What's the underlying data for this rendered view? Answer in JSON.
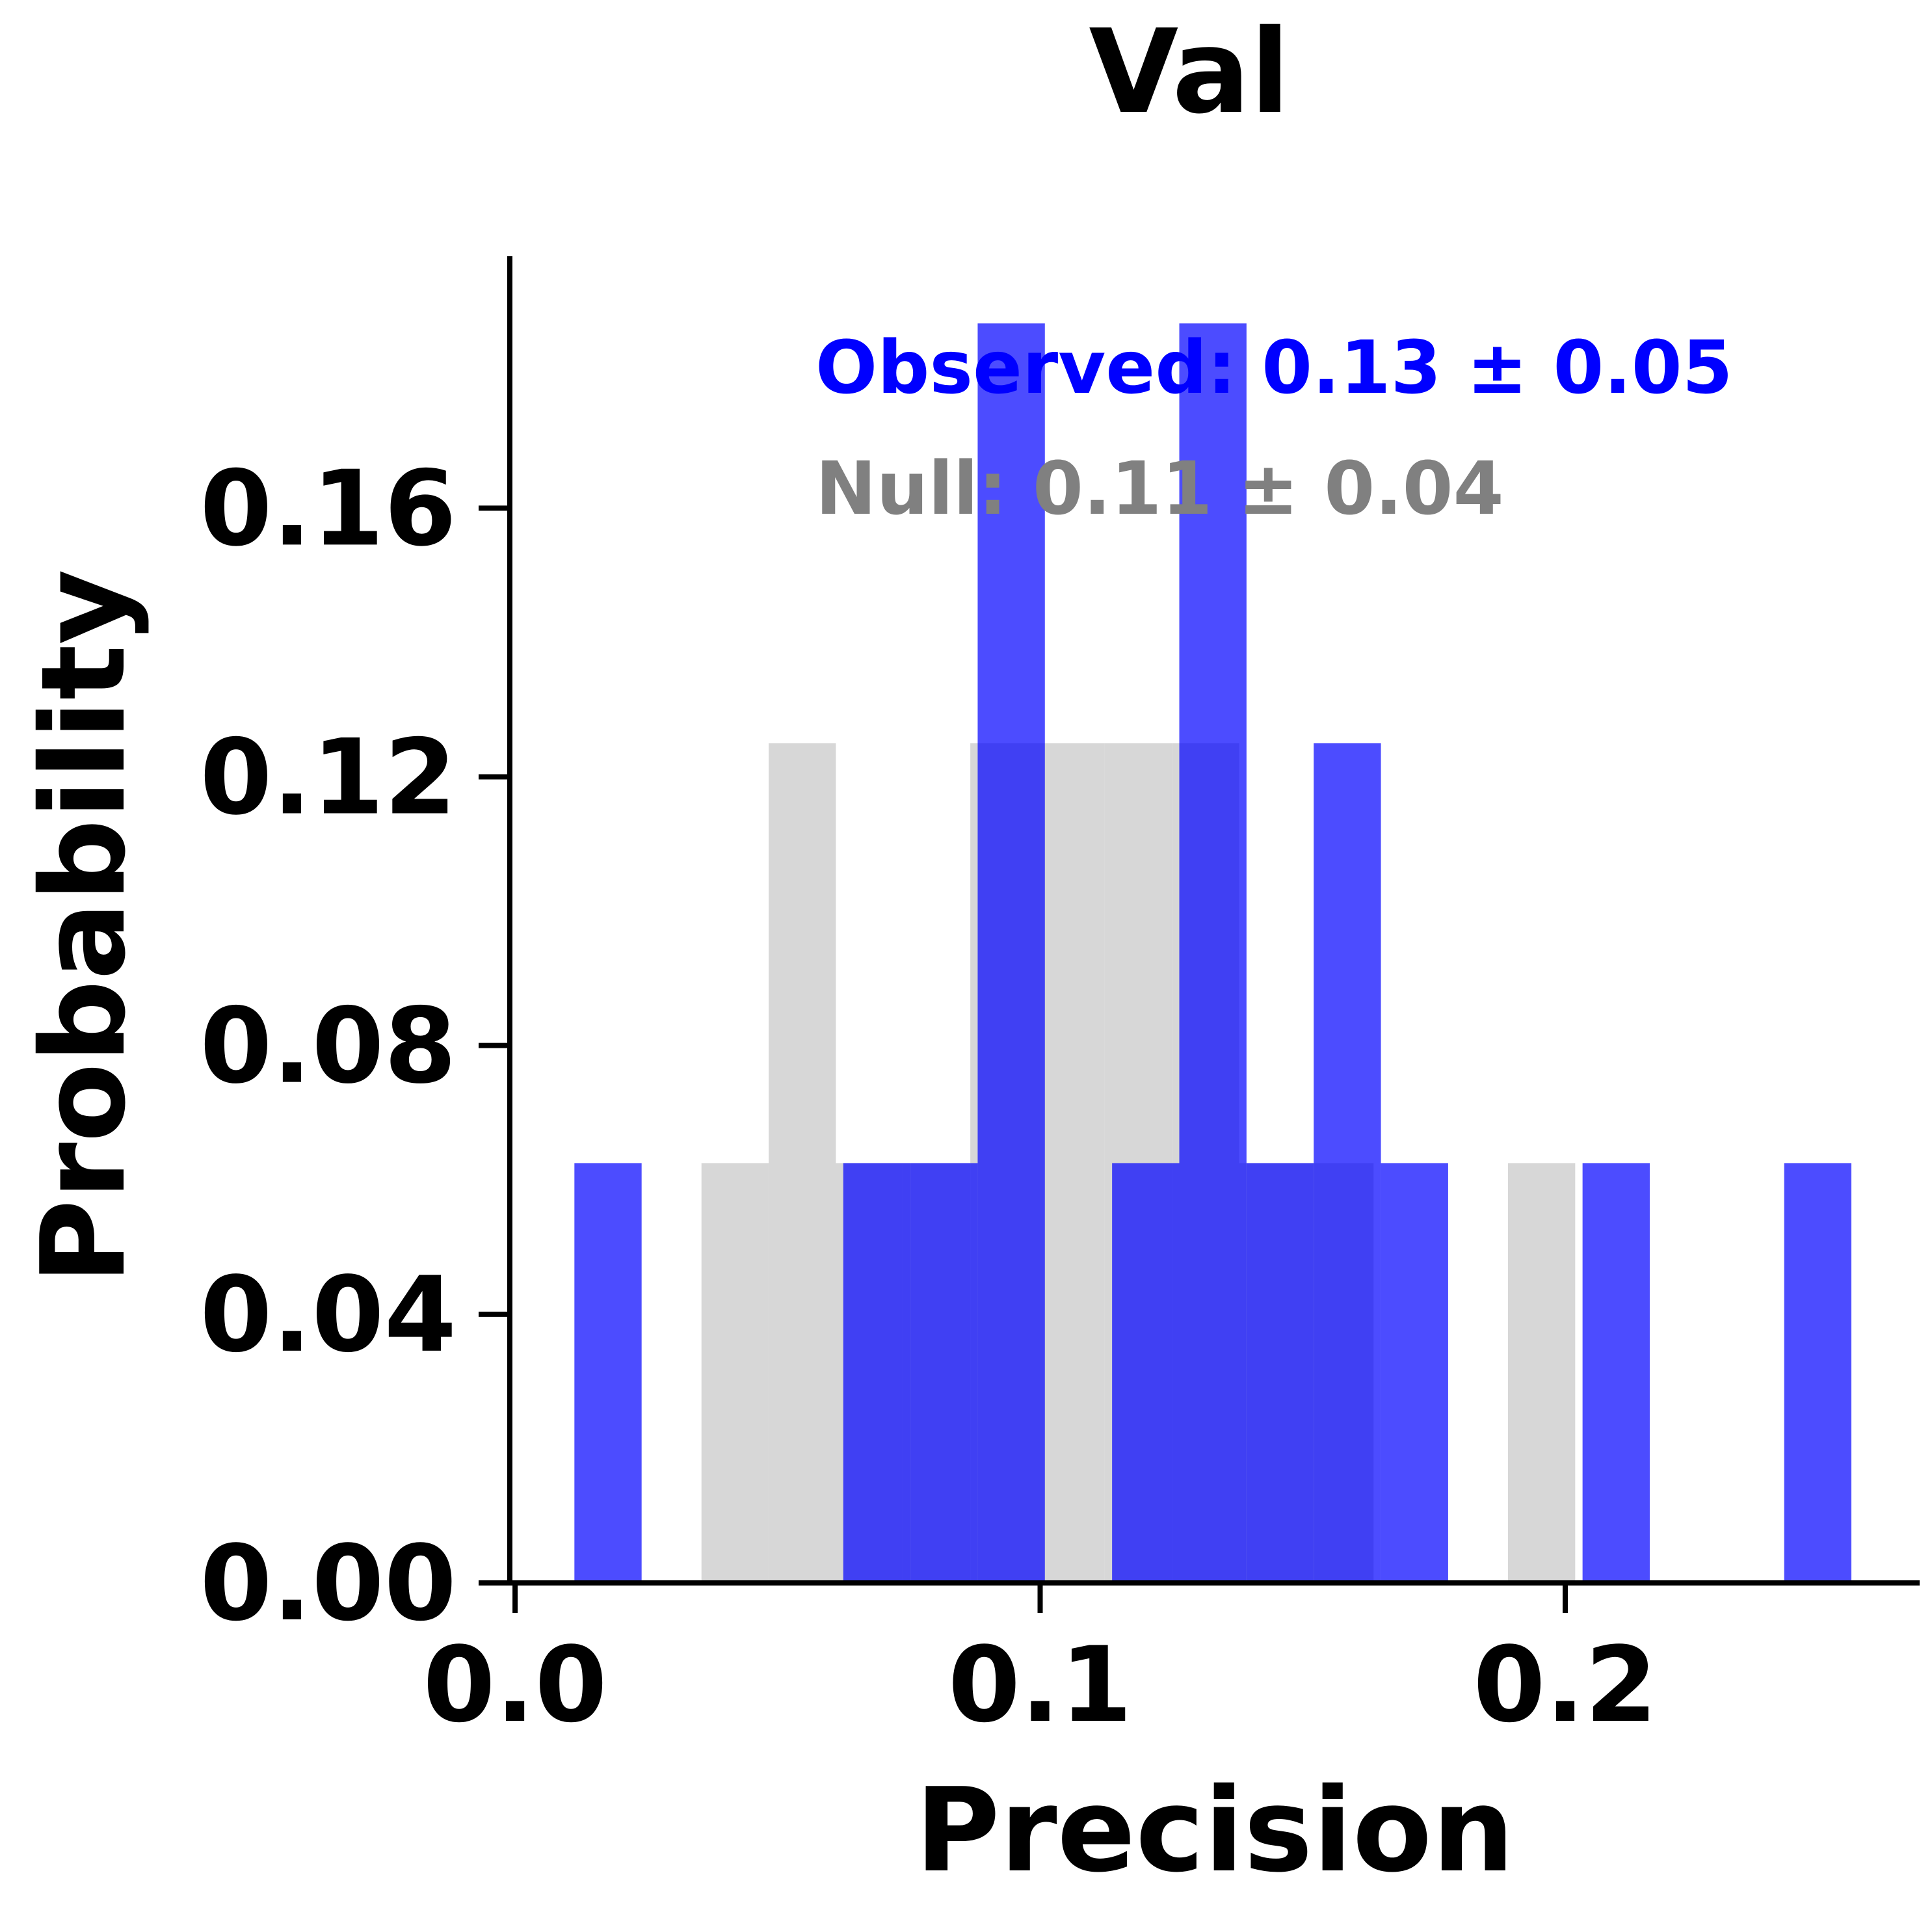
{
  "chart_data": {
    "type": "bar",
    "title": "Val",
    "xlabel": "Precision",
    "ylabel": "Probability",
    "xlim": [
      -0.001,
      0.2675
    ],
    "ylim": [
      0,
      0.1975
    ],
    "x_ticks": [
      0.0,
      0.1,
      0.2
    ],
    "x_tick_labels": [
      "0.0",
      "0.1",
      "0.2"
    ],
    "y_ticks": [
      0.0,
      0.04,
      0.08,
      0.12,
      0.16
    ],
    "y_tick_labels": [
      "0.00",
      "0.04",
      "0.08",
      "0.12",
      "0.16"
    ],
    "grid": false,
    "series": [
      {
        "name": "Null",
        "color": "#d3d3d3",
        "opacity": 0.9,
        "bins": [
          {
            "x0": 0.0355,
            "x1": 0.0483,
            "value": 0.0625
          },
          {
            "x0": 0.0483,
            "x1": 0.0611,
            "value": 0.125
          },
          {
            "x0": 0.0611,
            "x1": 0.0739,
            "value": 0.0625
          },
          {
            "x0": 0.0739,
            "x1": 0.0867,
            "value": 0.0625
          },
          {
            "x0": 0.0867,
            "x1": 0.0995,
            "value": 0.125
          },
          {
            "x0": 0.0995,
            "x1": 0.1123,
            "value": 0.125
          },
          {
            "x0": 0.1123,
            "x1": 0.1251,
            "value": 0.125
          },
          {
            "x0": 0.1251,
            "x1": 0.1379,
            "value": 0.125
          },
          {
            "x0": 0.1379,
            "x1": 0.1507,
            "value": 0.0625
          },
          {
            "x0": 0.1507,
            "x1": 0.1635,
            "value": 0.0625
          },
          {
            "x0": 0.1891,
            "x1": 0.2019,
            "value": 0.0625
          }
        ]
      },
      {
        "name": "Observed",
        "color": "#0000ff",
        "opacity": 0.7,
        "bins": [
          {
            "x0": 0.0113,
            "x1": 0.0241,
            "value": 0.0625
          },
          {
            "x0": 0.0625,
            "x1": 0.0753,
            "value": 0.0625
          },
          {
            "x0": 0.0753,
            "x1": 0.0881,
            "value": 0.0625
          },
          {
            "x0": 0.0881,
            "x1": 0.1009,
            "value": 0.1875
          },
          {
            "x0": 0.1137,
            "x1": 0.1265,
            "value": 0.0625
          },
          {
            "x0": 0.1265,
            "x1": 0.1393,
            "value": 0.1875
          },
          {
            "x0": 0.1393,
            "x1": 0.1521,
            "value": 0.0625
          },
          {
            "x0": 0.1521,
            "x1": 0.1649,
            "value": 0.125
          },
          {
            "x0": 0.1649,
            "x1": 0.1777,
            "value": 0.0625
          },
          {
            "x0": 0.2033,
            "x1": 0.2161,
            "value": 0.0625
          },
          {
            "x0": 0.2417,
            "x1": 0.2545,
            "value": 0.0625
          }
        ]
      }
    ],
    "annotations": [
      {
        "text": "Observed: 0.13 ± 0.05",
        "color": "#0000ff"
      },
      {
        "text": "Null: 0.11 ± 0.04",
        "color": "#808080"
      }
    ]
  }
}
